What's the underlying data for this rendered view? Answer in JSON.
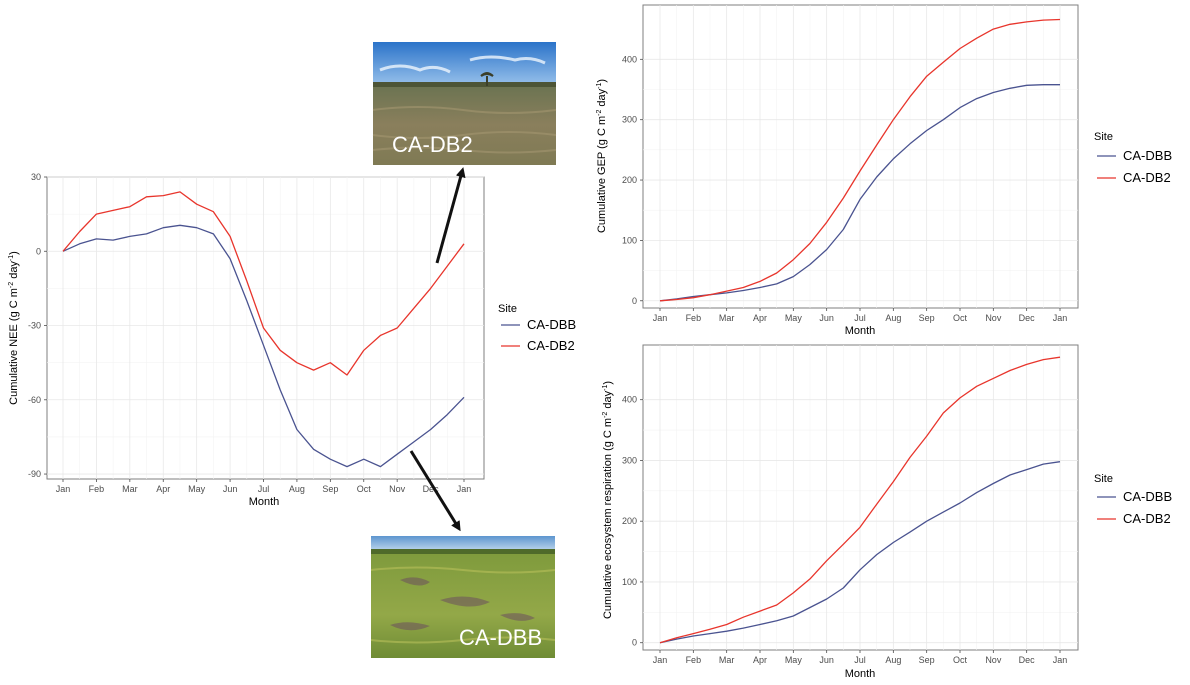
{
  "colors": {
    "CA-DBB": "#4a5390",
    "CA-DB2": "#e8352c"
  },
  "chart_data": [
    {
      "id": "nee",
      "type": "line",
      "xlabel": "Month",
      "ylabel_main": "Cumulative NEE (g C m",
      "ylabel_sup1": "-2",
      "ylabel_mid": " day",
      "ylabel_sup2": "-1",
      "ylabel_end": ")",
      "x_tick_labels": [
        "Jan",
        "Feb",
        "Mar",
        "Apr",
        "May",
        "Jun",
        "Jul",
        "Aug",
        "Sep",
        "Oct",
        "Nov",
        "Dec",
        "Jan"
      ],
      "y_ticks": [
        30,
        0,
        -30,
        -60,
        -90
      ],
      "ylim": [
        -92,
        30
      ],
      "legend": {
        "title": "Site",
        "labels": [
          "CA-DBB",
          "CA-DB2"
        ]
      },
      "series": [
        {
          "name": "CA-DBB",
          "x": [
            0,
            0.5,
            1,
            1.5,
            2,
            2.5,
            3,
            3.5,
            4,
            4.5,
            5,
            5.5,
            6,
            6.5,
            7,
            7.5,
            8,
            8.5,
            9,
            9.5,
            10,
            10.5,
            11,
            11.5,
            12
          ],
          "y": [
            0,
            3,
            5,
            4.5,
            6,
            7,
            9.5,
            10.5,
            9.5,
            7,
            -3,
            -20,
            -38,
            -56,
            -72,
            -80,
            -84,
            -87,
            -84,
            -87,
            -82,
            -77,
            -72,
            -66,
            -59
          ]
        },
        {
          "name": "CA-DB2",
          "x": [
            0,
            0.5,
            1,
            1.5,
            2,
            2.5,
            3,
            3.5,
            4,
            4.5,
            5,
            5.5,
            6,
            6.5,
            7,
            7.5,
            8,
            8.5,
            9,
            9.5,
            10,
            10.5,
            11,
            11.5,
            12
          ],
          "y": [
            0,
            8,
            15,
            16.5,
            18,
            22,
            22.5,
            24,
            19,
            16,
            6,
            -12,
            -31,
            -40,
            -45,
            -48,
            -45,
            -50,
            -40,
            -34,
            -31,
            -23,
            -15,
            -6,
            3
          ]
        }
      ]
    },
    {
      "id": "gep",
      "type": "line",
      "xlabel": "Month",
      "ylabel_main": "Cumulative GEP (g C m",
      "ylabel_sup1": "-2",
      "ylabel_mid": " day",
      "ylabel_sup2": "-1",
      "ylabel_end": ")",
      "x_tick_labels": [
        "Jan",
        "Feb",
        "Mar",
        "Apr",
        "May",
        "Jun",
        "Jul",
        "Aug",
        "Sep",
        "Oct",
        "Nov",
        "Dec",
        "Jan"
      ],
      "y_ticks": [
        0,
        100,
        200,
        300,
        400
      ],
      "ylim": [
        -12,
        490
      ],
      "legend": {
        "title": "Site",
        "labels": [
          "CA-DBB",
          "CA-DB2"
        ]
      },
      "series": [
        {
          "name": "CA-DBB",
          "x": [
            0,
            0.5,
            1,
            1.5,
            2,
            2.5,
            3,
            3.5,
            4,
            4.5,
            5,
            5.5,
            6,
            6.5,
            7,
            7.5,
            8,
            8.5,
            9,
            9.5,
            10,
            10.5,
            11,
            11.5,
            12
          ],
          "y": [
            0,
            3,
            7,
            10,
            13,
            17,
            22,
            28,
            40,
            60,
            85,
            118,
            168,
            205,
            235,
            260,
            282,
            300,
            320,
            335,
            345,
            352,
            357,
            358,
            358
          ]
        },
        {
          "name": "CA-DB2",
          "x": [
            0,
            0.5,
            1,
            1.5,
            2,
            2.5,
            3,
            3.5,
            4,
            4.5,
            5,
            5.5,
            6,
            6.5,
            7,
            7.5,
            8,
            8.5,
            9,
            9.5,
            10,
            10.5,
            11,
            11.5,
            12
          ],
          "y": [
            0,
            2,
            5,
            10,
            16,
            22,
            32,
            46,
            68,
            95,
            130,
            170,
            215,
            258,
            300,
            338,
            372,
            395,
            418,
            435,
            450,
            458,
            462,
            465,
            466
          ]
        }
      ]
    },
    {
      "id": "er",
      "type": "line",
      "xlabel": "Month",
      "ylabel_main": "Cumulative ecosystem respiration (g C m",
      "ylabel_sup1": "-2",
      "ylabel_mid": " day",
      "ylabel_sup2": "-1",
      "ylabel_end": ")",
      "x_tick_labels": [
        "Jan",
        "Feb",
        "Mar",
        "Apr",
        "May",
        "Jun",
        "Jul",
        "Aug",
        "Sep",
        "Oct",
        "Nov",
        "Dec",
        "Jan"
      ],
      "y_ticks": [
        0,
        100,
        200,
        300,
        400
      ],
      "ylim": [
        -12,
        490
      ],
      "legend": {
        "title": "Site",
        "labels": [
          "CA-DBB",
          "CA-DB2"
        ]
      },
      "series": [
        {
          "name": "CA-DBB",
          "x": [
            0,
            0.5,
            1,
            1.5,
            2,
            2.5,
            3,
            3.5,
            4,
            4.5,
            5,
            5.5,
            6,
            6.5,
            7,
            7.5,
            8,
            8.5,
            9,
            9.5,
            10,
            10.5,
            11,
            11.5,
            12
          ],
          "y": [
            0,
            6,
            11,
            15,
            19,
            24,
            30,
            36,
            44,
            58,
            72,
            90,
            120,
            145,
            165,
            182,
            200,
            215,
            230,
            247,
            262,
            276,
            285,
            294,
            298
          ]
        },
        {
          "name": "CA-DB2",
          "x": [
            0,
            0.5,
            1,
            1.5,
            2,
            2.5,
            3,
            3.5,
            4,
            4.5,
            5,
            5.5,
            6,
            6.5,
            7,
            7.5,
            8,
            8.5,
            9,
            9.5,
            10,
            10.5,
            11,
            11.5,
            12
          ],
          "y": [
            0,
            8,
            15,
            22,
            30,
            42,
            52,
            62,
            82,
            105,
            135,
            162,
            190,
            228,
            265,
            305,
            340,
            378,
            403,
            422,
            435,
            448,
            458,
            466,
            470
          ]
        }
      ]
    }
  ],
  "photos": [
    {
      "label": "CA-DB2"
    },
    {
      "label": "CA-DBB"
    }
  ]
}
